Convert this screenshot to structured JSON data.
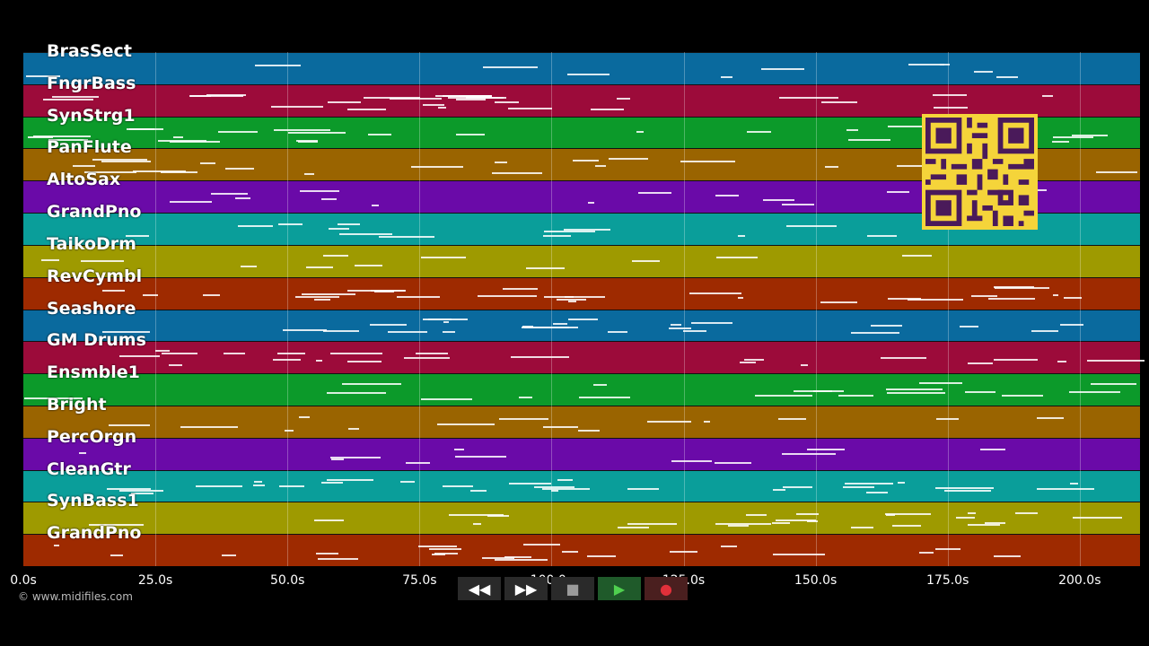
{
  "tracks": [
    {
      "name": "BrasSect",
      "color": "#0a6a9e"
    },
    {
      "name": "FngrBass",
      "color": "#9c0b3a"
    },
    {
      "name": "SynStrg1",
      "color": "#0c9a2a"
    },
    {
      "name": "PanFlute",
      "color": "#9a6400"
    },
    {
      "name": "AltoSax",
      "color": "#6a0aa8"
    },
    {
      "name": "GrandPno",
      "color": "#0a9e9a"
    },
    {
      "name": "TaikoDrm",
      "color": "#9e9a00"
    },
    {
      "name": "RevCymbl",
      "color": "#9e2a00"
    },
    {
      "name": "Seashore",
      "color": "#0a6a9e"
    },
    {
      "name": "GM Drums",
      "color": "#9c0b3a"
    },
    {
      "name": "Ensmble1",
      "color": "#0c9a2a"
    },
    {
      "name": "Bright",
      "color": "#9a6400"
    },
    {
      "name": "PercOrgn",
      "color": "#6a0aa8"
    },
    {
      "name": "CleanGtr",
      "color": "#0a9e9a"
    },
    {
      "name": "SynBass1",
      "color": "#9e9a00"
    },
    {
      "name": "GrandPno",
      "color": "#9e2a00"
    }
  ],
  "timeline": {
    "ticks": [
      "0.0s",
      "25.0s",
      "50.0s",
      "75.0s",
      "100.0s",
      "125.0s",
      "150.0s",
      "175.0s",
      "200.0s"
    ]
  },
  "copyright": "© www.midifiles.com",
  "transport": {
    "rewind_label": "◀◀",
    "forward_label": "▶▶",
    "stop_label": "■",
    "play_label": "▶",
    "record_label": "●"
  }
}
